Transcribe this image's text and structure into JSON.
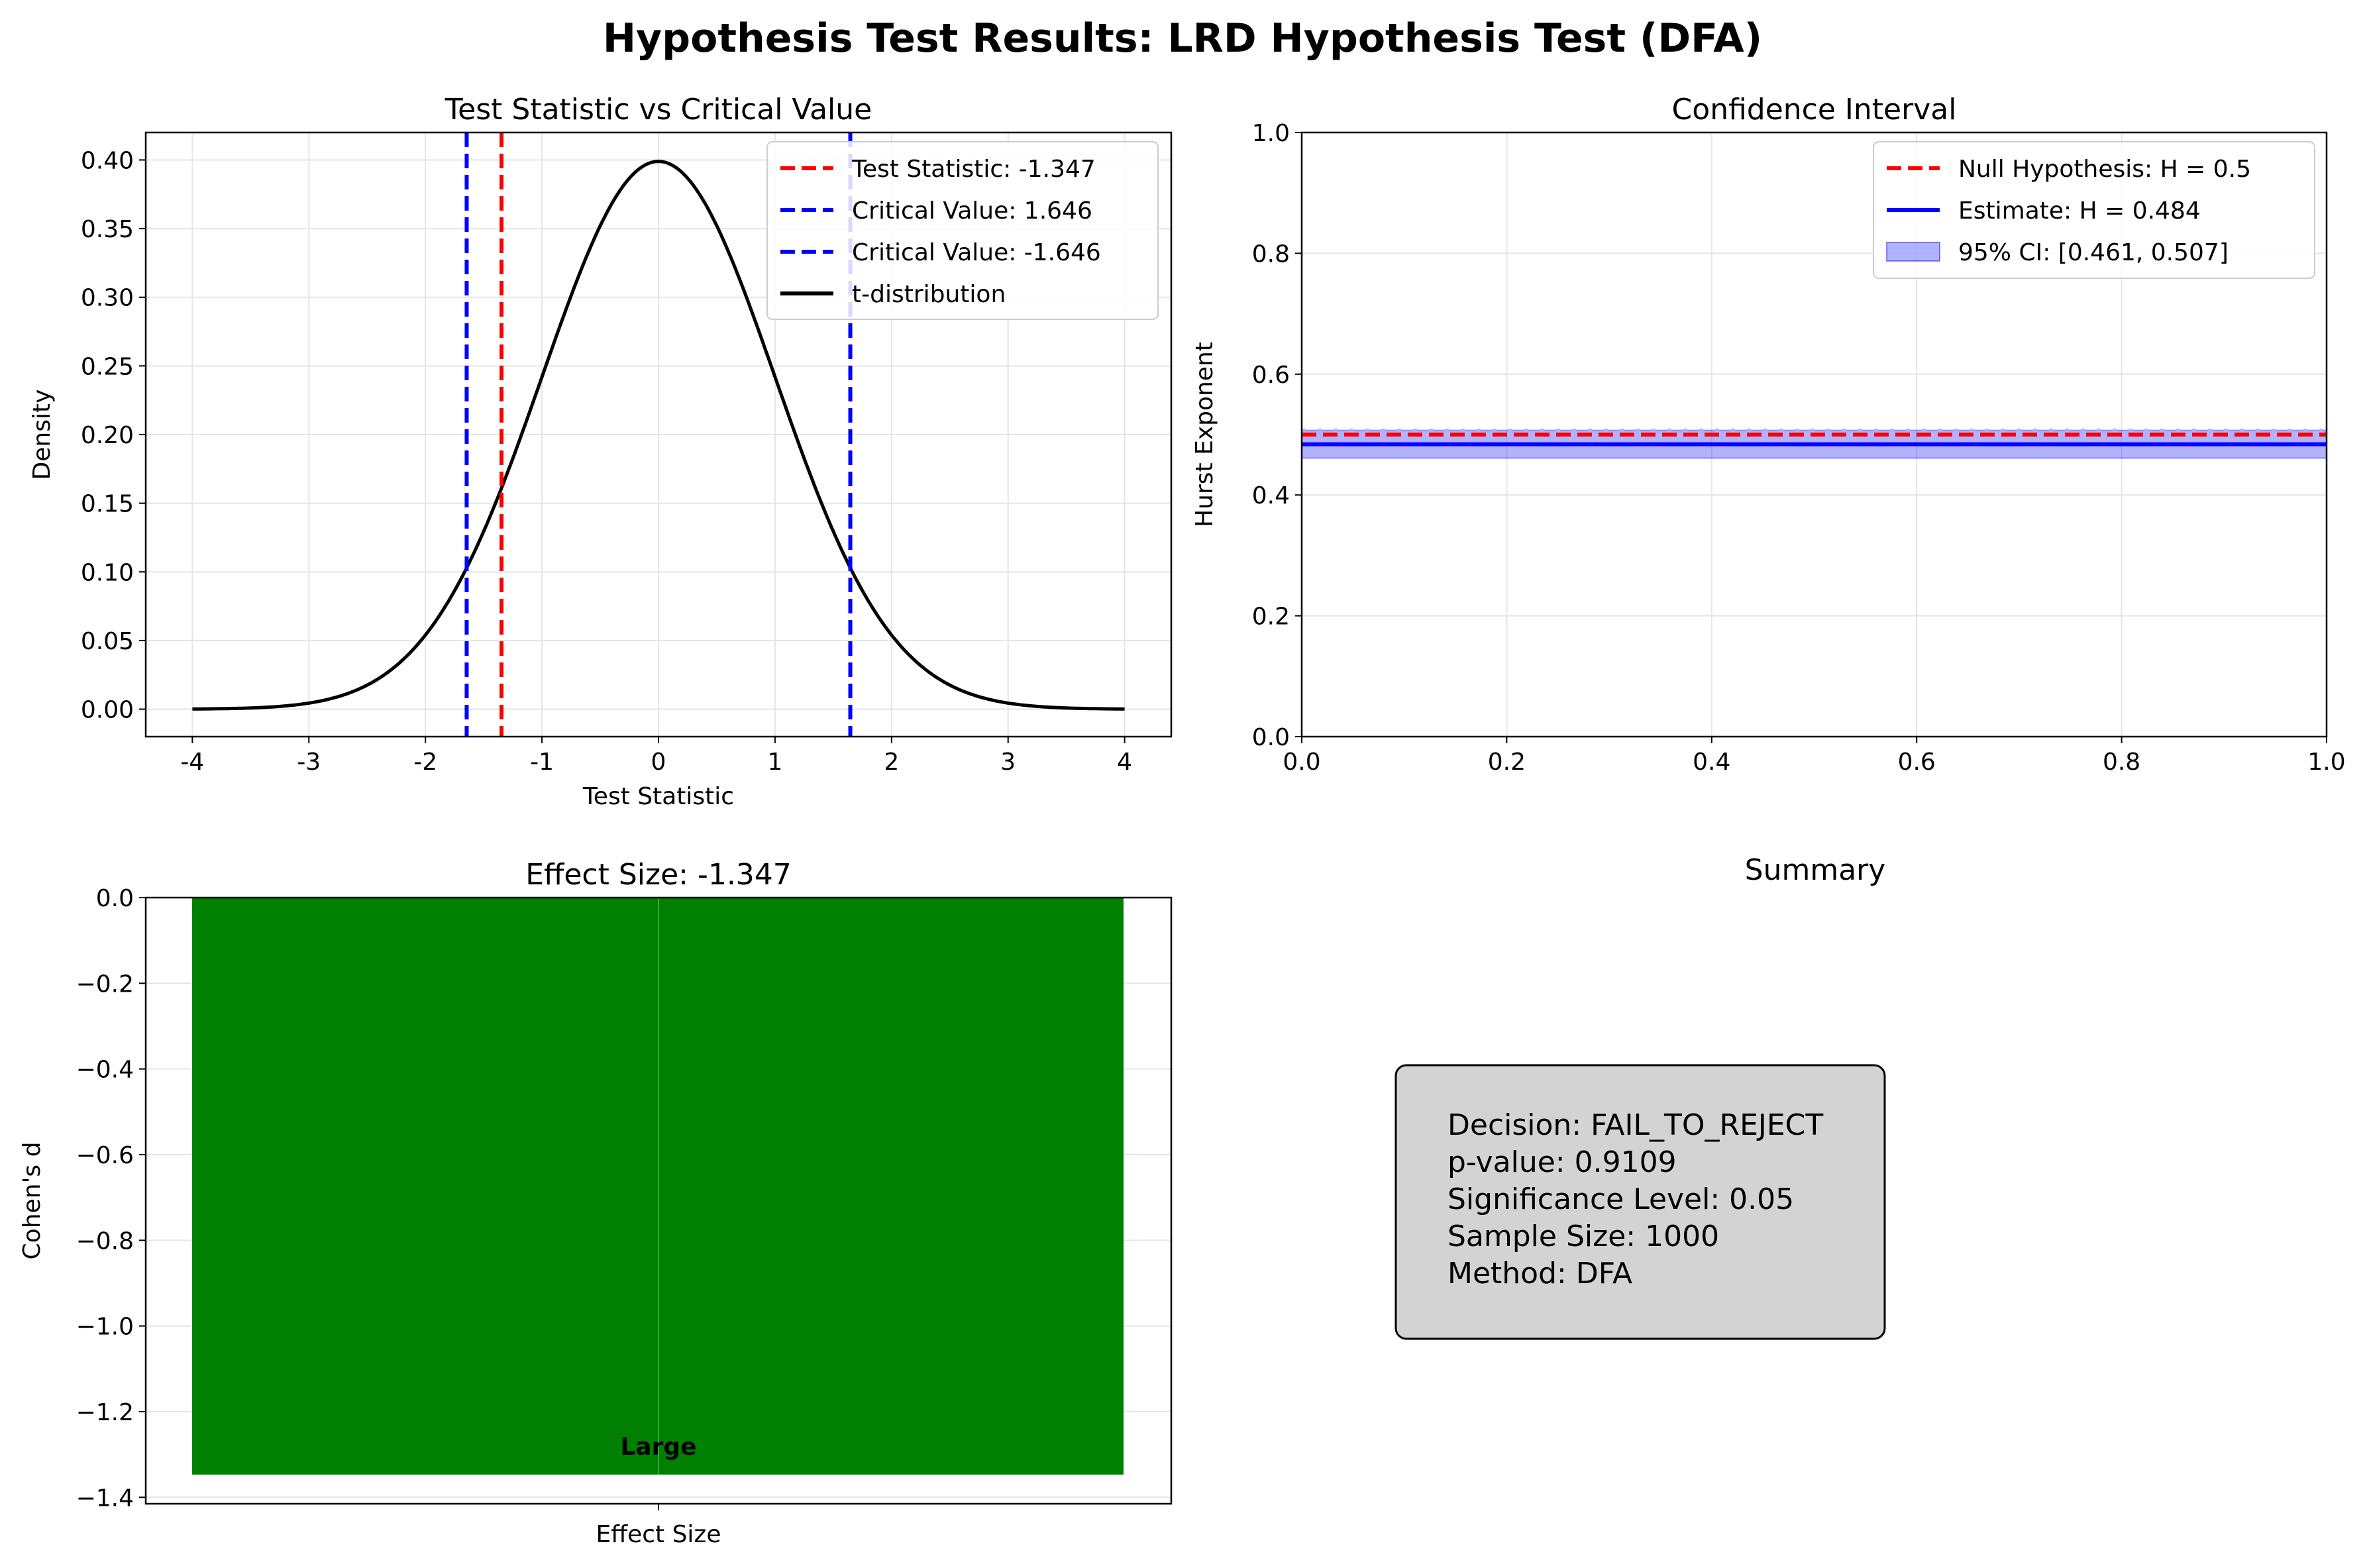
{
  "figure": {
    "title": "Hypothesis Test Results: LRD Hypothesis Test (DFA)"
  },
  "chart_data": [
    {
      "type": "line",
      "title": "Test Statistic vs Critical Value",
      "xlabel": "Test Statistic",
      "ylabel": "Density",
      "xlim": [
        -4.4,
        4.4
      ],
      "ylim": [
        -0.02,
        0.42
      ],
      "xticks": [
        -4,
        -3,
        -2,
        -1,
        0,
        1,
        2,
        3,
        4
      ],
      "yticks": [
        0.0,
        0.05,
        0.1,
        0.15,
        0.2,
        0.25,
        0.3,
        0.35,
        0.4
      ],
      "grid": true,
      "legend": "top-right",
      "series": [
        {
          "name": "t-distribution",
          "color": "#000000",
          "style": "solid",
          "distribution": "standard normal",
          "x_range": [
            -4,
            4
          ]
        }
      ],
      "vlines": [
        {
          "name": "Test Statistic: -1.347",
          "x": -1.347,
          "color": "#ff0000",
          "style": "dashed"
        },
        {
          "name": "Critical Value: 1.646",
          "x": 1.646,
          "color": "#0000ff",
          "style": "dashed"
        },
        {
          "name": "Critical Value: -1.646",
          "x": -1.646,
          "color": "#0000ff",
          "style": "dashed"
        }
      ]
    },
    {
      "type": "line",
      "title": "Confidence Interval",
      "xlabel": "",
      "ylabel": "Hurst Exponent",
      "xlim": [
        0,
        1
      ],
      "ylim": [
        0,
        1
      ],
      "xticks": [
        0.0,
        0.2,
        0.4,
        0.6,
        0.8,
        1.0
      ],
      "yticks": [
        0.0,
        0.2,
        0.4,
        0.6,
        0.8,
        1.0
      ],
      "grid": true,
      "legend": "top-right",
      "hlines": [
        {
          "name": "Null Hypothesis: H = 0.5",
          "y": 0.5,
          "color": "#ff0000",
          "style": "dashed"
        },
        {
          "name": "Estimate: H = 0.484",
          "y": 0.484,
          "color": "#0000ff",
          "style": "solid"
        }
      ],
      "band": {
        "name": "95% CI: [0.461, 0.507]",
        "low": 0.461,
        "high": 0.507,
        "color": "#0000ff"
      }
    },
    {
      "type": "bar",
      "title": "Effect Size: -1.347",
      "xlabel": "",
      "ylabel": "Cohen's d",
      "categories": [
        "Effect Size"
      ],
      "values": [
        -1.347
      ],
      "bar_label": "Large",
      "color": "#008000",
      "ylim": [
        -1.415,
        0
      ],
      "yticks": [
        0.0,
        -0.2,
        -0.4,
        -0.6,
        -0.8,
        -1.0,
        -1.2,
        -1.4
      ],
      "grid": true
    }
  ],
  "summary": {
    "title": "Summary",
    "lines": [
      "Decision: FAIL_TO_REJECT",
      "p-value: 0.9109",
      "Significance Level: 0.05",
      "Sample Size: 1000",
      "Method: DFA"
    ]
  }
}
